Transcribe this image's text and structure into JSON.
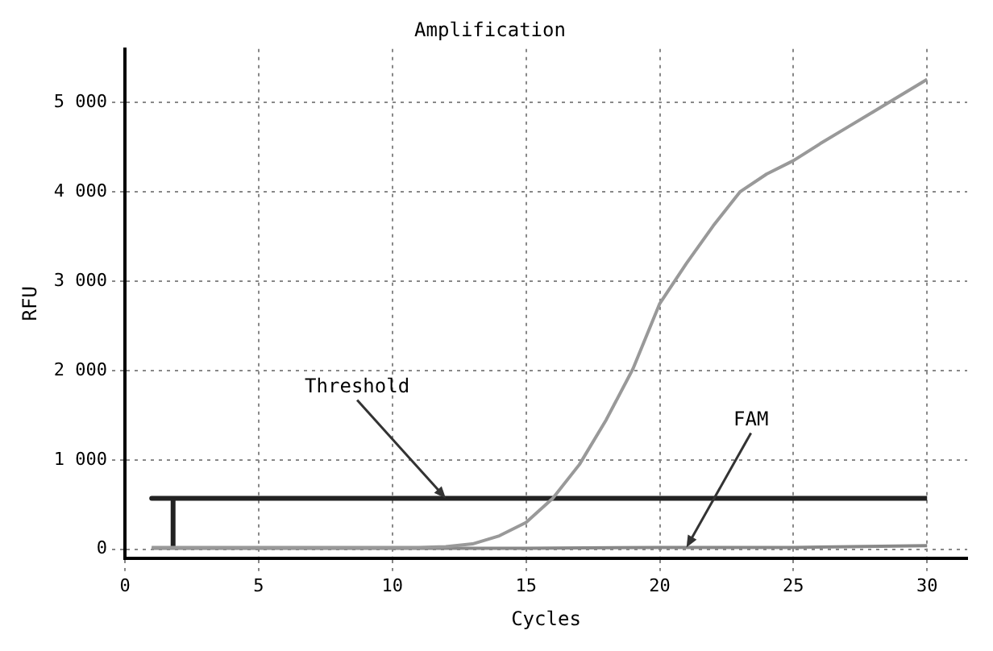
{
  "chart_data": {
    "type": "line",
    "title": "Amplification",
    "xlabel": "Cycles",
    "ylabel": "RFU",
    "xlim": [
      0,
      31.5
    ],
    "xticks": [
      0,
      5,
      10,
      15,
      20,
      25,
      30
    ],
    "ylim": [
      -100,
      5600
    ],
    "yticks": [
      0,
      {
        "value": 1000,
        "label": "1 000"
      },
      {
        "value": 2000,
        "label": "2 000"
      },
      {
        "value": 3000,
        "label": "3 000"
      },
      {
        "value": 4000,
        "label": "4 000"
      },
      {
        "value": 5000,
        "label": "5 000"
      }
    ],
    "grid": true,
    "legend": false,
    "marker": "none",
    "line_style": "solid",
    "series": [
      {
        "color": "#999999",
        "x": [
          1,
          2,
          3,
          4,
          5,
          6,
          7,
          8,
          9,
          10,
          11,
          12,
          13,
          14,
          15,
          16,
          17,
          18,
          19,
          20,
          21,
          22,
          23,
          24,
          25,
          26,
          27,
          28,
          29,
          30
        ],
        "values": [
          20,
          20,
          20,
          20,
          20,
          20,
          20,
          20,
          20,
          20,
          20,
          30,
          60,
          150,
          300,
          570,
          950,
          1450,
          2020,
          2750,
          3200,
          3620,
          4000,
          4200,
          4350,
          4540,
          4720,
          4900,
          5080,
          5260
        ]
      },
      {
        "color": "#222222",
        "x": [
          1.8,
          1.8,
          1,
          30
        ],
        "values": [
          20,
          570,
          570,
          570
        ]
      },
      {
        "color": "#888888",
        "x": [
          1,
          5,
          10,
          15,
          20,
          25,
          30
        ],
        "values": [
          10,
          10,
          10,
          10,
          20,
          20,
          40
        ]
      }
    ],
    "annotations": [
      {
        "text": "Threshold",
        "x": 12,
        "y": 570
      },
      {
        "text": "FAM",
        "x": 21,
        "y": 20
      }
    ]
  }
}
